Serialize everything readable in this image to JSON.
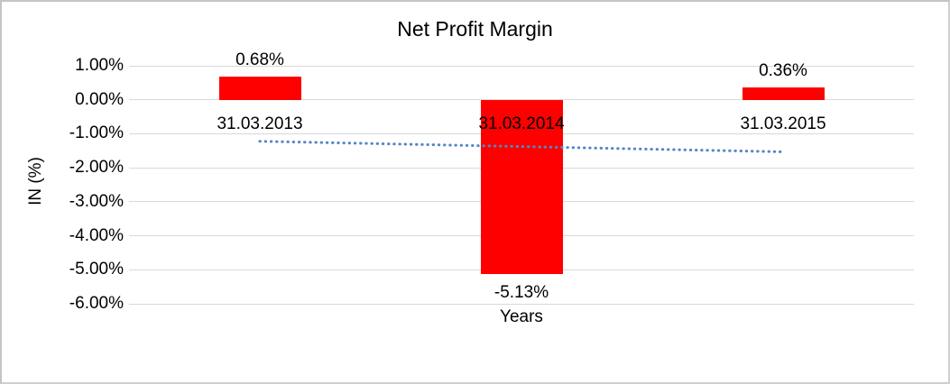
{
  "chart_data": {
    "type": "bar",
    "title": "Net Profit Margin",
    "xlabel": "Years",
    "ylabel": "IN (%)",
    "categories": [
      "31.03.2013",
      "31.03.2014",
      "31.03.2015"
    ],
    "values": [
      0.68,
      -5.13,
      0.36
    ],
    "data_labels": [
      "0.68%",
      "-5.13%",
      "0.36%"
    ],
    "yticks": [
      {
        "value": 1,
        "label": "1.00%"
      },
      {
        "value": 0,
        "label": "0.00%"
      },
      {
        "value": -1,
        "label": "-1.00%"
      },
      {
        "value": -2,
        "label": "-2.00%"
      },
      {
        "value": -3,
        "label": "-3.00%"
      },
      {
        "value": -4,
        "label": "-4.00%"
      },
      {
        "value": -5,
        "label": "-5.00%"
      },
      {
        "value": -6,
        "label": "-6.00%"
      }
    ],
    "ylim": [
      -6,
      1
    ],
    "grid": true,
    "legend": "none",
    "bar_color": "#ff0000",
    "gridline_color": "#d9d9d9",
    "trendline": {
      "type": "linear",
      "style": "dotted",
      "color": "#5585c5",
      "start_value": -1.22,
      "end_value": -1.53
    }
  }
}
